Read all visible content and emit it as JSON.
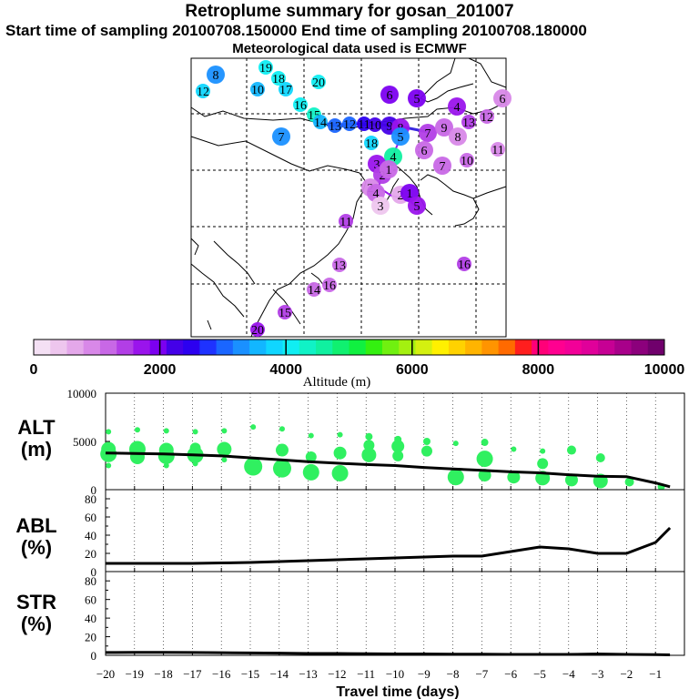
{
  "header": {
    "title": "Retroplume summary for gosan_201007",
    "sampling_line": "Start time of sampling 20100708.150000     End time of sampling 20100708.180000",
    "met_line": "Meteorological data used is ECMWF"
  },
  "colorbar": {
    "tick_labels": [
      "0",
      "2000",
      "4000",
      "6000",
      "8000",
      "10000"
    ],
    "title": "Altitude (m)",
    "colors": [
      "#f4e0f4",
      "#eec6ee",
      "#e4a8ea",
      "#d888e8",
      "#c868e6",
      "#b23ee6",
      "#9a14ec",
      "#7c00f0",
      "#4400e8",
      "#2c00f0",
      "#1e32ff",
      "#1a66ff",
      "#1a90ff",
      "#12b6ff",
      "#10d6ff",
      "#10eef2",
      "#10f2c6",
      "#10f0a0",
      "#10f070",
      "#10f040",
      "#34f010",
      "#70f010",
      "#a4f010",
      "#d4f010",
      "#fff000",
      "#ffd200",
      "#ffb400",
      "#ff9400",
      "#ff6a00",
      "#ff1e1e",
      "#ff0078",
      "#ff0090",
      "#f20098",
      "#e0009a",
      "#c60094",
      "#a8008a",
      "#8c007c",
      "#70006c"
    ]
  },
  "map": {
    "markers": [
      {
        "label": "19",
        "x": 292,
        "y": 74,
        "alt": 4200
      },
      {
        "label": "18",
        "x": 306,
        "y": 86,
        "alt": 4100
      },
      {
        "label": "17",
        "x": 314,
        "y": 98,
        "alt": 3900
      },
      {
        "label": "20",
        "x": 350,
        "y": 90,
        "alt": 4000
      },
      {
        "label": "16",
        "x": 330,
        "y": 115,
        "alt": 4200
      },
      {
        "label": "15",
        "x": 345,
        "y": 126,
        "alt": 4300
      },
      {
        "label": "14",
        "x": 352,
        "y": 134,
        "alt": 3600
      },
      {
        "label": "13",
        "x": 368,
        "y": 138,
        "alt": 3100
      },
      {
        "label": "12",
        "x": 384,
        "y": 136,
        "alt": 2900
      },
      {
        "label": "11",
        "x": 400,
        "y": 136,
        "alt": 2600
      },
      {
        "label": "10",
        "x": 412,
        "y": 137,
        "alt": 2300
      },
      {
        "label": "9",
        "x": 428,
        "y": 138,
        "alt": 2200
      },
      {
        "label": "8",
        "x": 440,
        "y": 140,
        "alt": 1800
      },
      {
        "label": "7",
        "x": 470,
        "y": 146,
        "alt": 1500
      },
      {
        "label": "6",
        "x": 466,
        "y": 165,
        "alt": 1200
      },
      {
        "label": "5",
        "x": 440,
        "y": 150,
        "alt": 3400
      },
      {
        "label": "18",
        "x": 408,
        "y": 157,
        "alt": 3800
      },
      {
        "label": "4",
        "x": 432,
        "y": 172,
        "alt": 4500
      },
      {
        "label": "3",
        "x": 414,
        "y": 180,
        "alt": 1700
      },
      {
        "label": "2",
        "x": 420,
        "y": 192,
        "alt": 1500
      },
      {
        "label": "1",
        "x": 427,
        "y": 186,
        "alt": 1300
      },
      {
        "label": "7",
        "x": 486,
        "y": 182,
        "alt": 1200
      },
      {
        "label": "2",
        "x": 407,
        "y": 206,
        "alt": 1000
      },
      {
        "label": "4",
        "x": 413,
        "y": 212,
        "alt": 1200
      },
      {
        "label": "3",
        "x": 418,
        "y": 226,
        "alt": 300
      },
      {
        "label": "2",
        "x": 440,
        "y": 214,
        "alt": 700
      },
      {
        "label": "1",
        "x": 450,
        "y": 212,
        "alt": 2100
      },
      {
        "label": "5",
        "x": 458,
        "y": 226,
        "alt": 1800
      },
      {
        "label": "12",
        "x": 223,
        "y": 100,
        "alt": 3900
      },
      {
        "label": "10",
        "x": 283,
        "y": 98,
        "alt": 3600
      },
      {
        "label": "8",
        "x": 237,
        "y": 82,
        "alt": 3400
      },
      {
        "label": "7",
        "x": 309,
        "y": 150,
        "alt": 3400
      },
      {
        "label": "6",
        "x": 428,
        "y": 104,
        "alt": 2000
      },
      {
        "label": "5",
        "x": 458,
        "y": 108,
        "alt": 2100
      },
      {
        "label": "4",
        "x": 502,
        "y": 117,
        "alt": 1700
      },
      {
        "label": "9",
        "x": 488,
        "y": 140,
        "alt": 1200
      },
      {
        "label": "8",
        "x": 503,
        "y": 150,
        "alt": 1000
      },
      {
        "label": "13",
        "x": 515,
        "y": 134,
        "alt": 1400
      },
      {
        "label": "10",
        "x": 513,
        "y": 176,
        "alt": 1200
      },
      {
        "label": "11",
        "x": 547,
        "y": 164,
        "alt": 1000
      },
      {
        "label": "12",
        "x": 535,
        "y": 128,
        "alt": 1200
      },
      {
        "label": "6",
        "x": 552,
        "y": 108,
        "alt": 800
      },
      {
        "label": "11",
        "x": 380,
        "y": 243,
        "alt": 1500
      },
      {
        "label": "13",
        "x": 373,
        "y": 291,
        "alt": 1300
      },
      {
        "label": "14",
        "x": 345,
        "y": 318,
        "alt": 1200
      },
      {
        "label": "16",
        "x": 362,
        "y": 313,
        "alt": 1300
      },
      {
        "label": "15",
        "x": 313,
        "y": 343,
        "alt": 1500
      },
      {
        "label": "20",
        "x": 283,
        "y": 362,
        "alt": 1700
      },
      {
        "label": "16",
        "x": 510,
        "y": 290,
        "alt": 1400
      }
    ]
  },
  "chart_data": [
    {
      "type": "scatter",
      "title": "ALT (m)",
      "panel_label_1": "ALT",
      "panel_label_2": "(m)",
      "ylim": [
        0,
        10000
      ],
      "xlim": [
        -20,
        0
      ],
      "y_tick_labels": [
        "10000",
        "5000",
        "0"
      ],
      "y_ticks": [
        10000,
        5000,
        0
      ],
      "series": [
        {
          "name": "mean altitude",
          "x": [
            -20,
            -19,
            -18,
            -17,
            -16,
            -15,
            -14,
            -13,
            -12,
            -11,
            -10,
            -9,
            -8,
            -7,
            -6,
            -5,
            -4,
            -3,
            -2,
            -1,
            -0.5
          ],
          "y": [
            3800,
            3750,
            3700,
            3600,
            3500,
            3300,
            3100,
            2900,
            2750,
            2600,
            2500,
            2300,
            2150,
            2000,
            1850,
            1750,
            1550,
            1400,
            1350,
            700,
            300
          ]
        },
        {
          "name": "particle clusters",
          "x": [
            -19.9,
            -19.9,
            -19.9,
            -19.9,
            -18.9,
            -18.9,
            -18.9,
            -17.9,
            -17.9,
            -17.9,
            -17.9,
            -16.9,
            -16.9,
            -16.9,
            -16.9,
            -15.9,
            -15.9,
            -15.9,
            -14.9,
            -14.9,
            -13.9,
            -13.9,
            -13.9,
            -12.9,
            -12.9,
            -12.9,
            -11.9,
            -11.9,
            -11.9,
            -10.9,
            -10.9,
            -10.9,
            -9.9,
            -9.9,
            -9.9,
            -8.9,
            -8.9,
            -7.9,
            -7.9,
            -6.9,
            -6.9,
            -6.9,
            -5.9,
            -5.9,
            -4.9,
            -4.9,
            -4.9,
            -3.9,
            -3.9,
            -2.9,
            -2.9,
            -1.9,
            -0.8
          ],
          "y": [
            6000,
            4200,
            3700,
            2500,
            6200,
            4200,
            3400,
            6100,
            4100,
            3500,
            2500,
            6000,
            4300,
            3600,
            2700,
            6100,
            4200,
            3100,
            6500,
            2400,
            6300,
            4100,
            2200,
            5600,
            3400,
            1800,
            5700,
            3800,
            1700,
            5500,
            4600,
            3600,
            5200,
            4500,
            3500,
            5000,
            4000,
            4800,
            1300,
            4900,
            3200,
            1500,
            4200,
            1300,
            4000,
            2700,
            1200,
            4100,
            1000,
            3300,
            900,
            800,
            300
          ],
          "size": [
            3,
            8,
            9,
            3,
            3,
            9,
            8,
            3,
            8,
            9,
            3,
            3,
            6,
            9,
            3,
            3,
            8,
            3,
            3,
            10,
            3,
            7,
            10,
            3,
            6,
            9,
            3,
            7,
            9,
            4,
            6,
            8,
            4,
            7,
            6,
            4,
            6,
            3,
            9,
            4,
            9,
            7,
            3,
            7,
            3,
            6,
            8,
            5,
            7,
            5,
            8,
            5,
            4
          ]
        }
      ]
    },
    {
      "type": "line",
      "title": "ABL (%)",
      "panel_label_1": "ABL",
      "panel_label_2": "(%)",
      "ylim": [
        0,
        90
      ],
      "xlim": [
        -20,
        0
      ],
      "y_tick_labels": [
        "80",
        "60",
        "40",
        "20",
        "0"
      ],
      "y_ticks": [
        80,
        60,
        40,
        20,
        0
      ],
      "series": [
        {
          "name": "ABL fraction",
          "x": [
            -20,
            -19,
            -18,
            -17,
            -16,
            -15,
            -14,
            -13,
            -12,
            -11,
            -10,
            -9,
            -8,
            -7,
            -6,
            -5,
            -4,
            -3,
            -2,
            -1,
            -0.5
          ],
          "y": [
            9,
            9,
            9,
            9,
            9.5,
            10,
            11,
            12,
            13,
            14,
            15,
            16,
            17,
            17,
            22,
            27,
            25,
            20,
            20,
            32,
            48
          ]
        }
      ]
    },
    {
      "type": "line",
      "title": "STR (%)",
      "panel_label_1": "STR",
      "panel_label_2": "(%)",
      "ylim": [
        0,
        90
      ],
      "xlim": [
        -20,
        0
      ],
      "y_tick_labels": [
        "80",
        "60",
        "40",
        "20",
        "0"
      ],
      "y_ticks": [
        80,
        60,
        40,
        20,
        0
      ],
      "xlabel": "Travel time (days)",
      "x_tick_labels": [
        "−20",
        "−19",
        "−18",
        "−17",
        "−16",
        "−15",
        "−14",
        "−13",
        "−12",
        "−11",
        "−10",
        "−9",
        "−8",
        "−7",
        "−6",
        "−5",
        "−4",
        "−3",
        "−2",
        "−1"
      ],
      "x_ticks": [
        -20,
        -19,
        -18,
        -17,
        -16,
        -15,
        -14,
        -13,
        -12,
        -11,
        -10,
        -9,
        -8,
        -7,
        -6,
        -5,
        -4,
        -3,
        -2,
        -1
      ],
      "series": [
        {
          "name": "stratosphere fraction",
          "x": [
            -20,
            -19,
            -18,
            -17,
            -16,
            -15,
            -14,
            -13,
            -12,
            -11,
            -10,
            -9,
            -8,
            -7,
            -6,
            -5,
            -4,
            -3,
            -2,
            -1,
            -0.5
          ],
          "y": [
            3,
            3.2,
            3.2,
            3,
            2.8,
            2.5,
            2.3,
            2,
            2,
            1.8,
            1.5,
            1.5,
            1.3,
            1.2,
            1,
            1,
            1,
            1.5,
            1,
            0.8,
            0.5
          ]
        }
      ]
    }
  ]
}
